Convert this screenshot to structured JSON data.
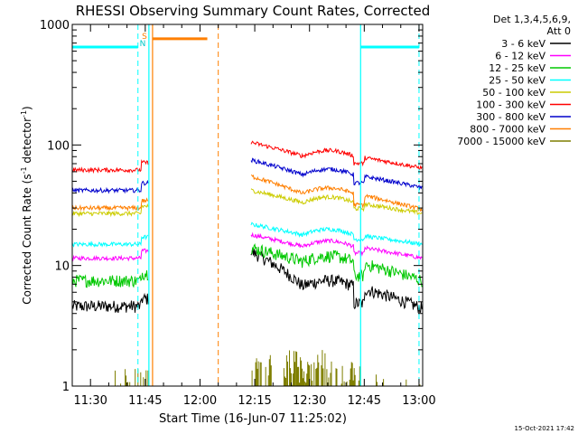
{
  "chart_data": {
    "type": "line",
    "title": "RHESSI Observing Summary Count Rates, Corrected",
    "xlabel": "Start Time (16-Jun-07 11:25:02)",
    "ylabel_main": "Corrected Count Rate (s",
    "ylabel_sup1": "-1",
    "ylabel_mid": " detector",
    "ylabel_sup2": "-1",
    "ylabel_end": ")",
    "yscale": "log",
    "ylim": [
      1,
      1000
    ],
    "xlim": [
      "11:25",
      "13:01"
    ],
    "x_ticks": [
      "11:30",
      "11:45",
      "12:00",
      "12:15",
      "12:30",
      "12:45",
      "13:00"
    ],
    "y_ticks": [
      "1",
      "10",
      "100",
      "1000"
    ],
    "legend_title_1": "Det 1,3,4,5,6,9,",
    "legend_title_2": "Att 0",
    "legend_position": "top-right",
    "timestamp": "15-Oct-2021 17:42",
    "flag_labels": [
      "S",
      "N"
    ],
    "segments": [
      {
        "start": "11:25",
        "end": "11:46"
      },
      {
        "start": "12:14",
        "end": "13:01"
      }
    ],
    "series": [
      {
        "name": "3 - 6 keV",
        "color": "#000000",
        "seg1": 4.6,
        "seg2_start": 13,
        "seg2_mid": 7.5,
        "seg2_end": 4.4
      },
      {
        "name": "6 - 12 keV",
        "color": "#ff00ff",
        "seg1": 11.5,
        "seg2_start": 18,
        "seg2_mid": 16,
        "seg2_end": 11.5
      },
      {
        "name": "12 - 25 keV",
        "color": "#00c800",
        "seg1": 7.5,
        "seg2_start": 14,
        "seg2_mid": 12,
        "seg2_end": 7.5
      },
      {
        "name": "25 - 50 keV",
        "color": "#00ffff",
        "seg1": 15,
        "seg2_start": 22,
        "seg2_mid": 20,
        "seg2_end": 15
      },
      {
        "name": "50 - 100 keV",
        "color": "#cccc00",
        "seg1": 27,
        "seg2_start": 42,
        "seg2_mid": 37,
        "seg2_end": 27
      },
      {
        "name": "100 - 300 keV",
        "color": "#ff0000",
        "seg1": 62,
        "seg2_start": 105,
        "seg2_mid": 90,
        "seg2_end": 64
      },
      {
        "name": "300 - 800 keV",
        "color": "#0000cc",
        "seg1": 42,
        "seg2_start": 75,
        "seg2_mid": 63,
        "seg2_end": 44
      },
      {
        "name": "800 - 7000 keV",
        "color": "#ff7f00",
        "seg1": 30,
        "seg2_start": 55,
        "seg2_mid": 44,
        "seg2_end": 29
      },
      {
        "name": "7000 - 15000 keV",
        "color": "#7f7f00",
        "seg1": 1.2,
        "seg2_start": 1.4,
        "seg2_mid": 1.8,
        "seg2_end": 1.2
      }
    ],
    "flag_bars": [
      {
        "color": "#00ffff",
        "y": 650,
        "start": "11:25",
        "end": "11:43"
      },
      {
        "color": "#ff7f00",
        "y": 760,
        "start": "11:47",
        "end": "12:02"
      },
      {
        "color": "#00ffff",
        "y": 650,
        "start": "12:44",
        "end": "13:00"
      }
    ],
    "vertical_lines": [
      {
        "color": "#00ffff",
        "style": "dashed",
        "t": "11:43"
      },
      {
        "color": "#00ffff",
        "style": "solid",
        "t": "11:46"
      },
      {
        "color": "#ff7f00",
        "style": "solid",
        "t": "11:47"
      },
      {
        "color": "#ff7f00",
        "style": "dashed",
        "t": "12:05"
      },
      {
        "color": "#00ffff",
        "style": "solid",
        "t": "12:44"
      },
      {
        "color": "#00ffff",
        "style": "dashed",
        "t": "13:00"
      }
    ]
  }
}
